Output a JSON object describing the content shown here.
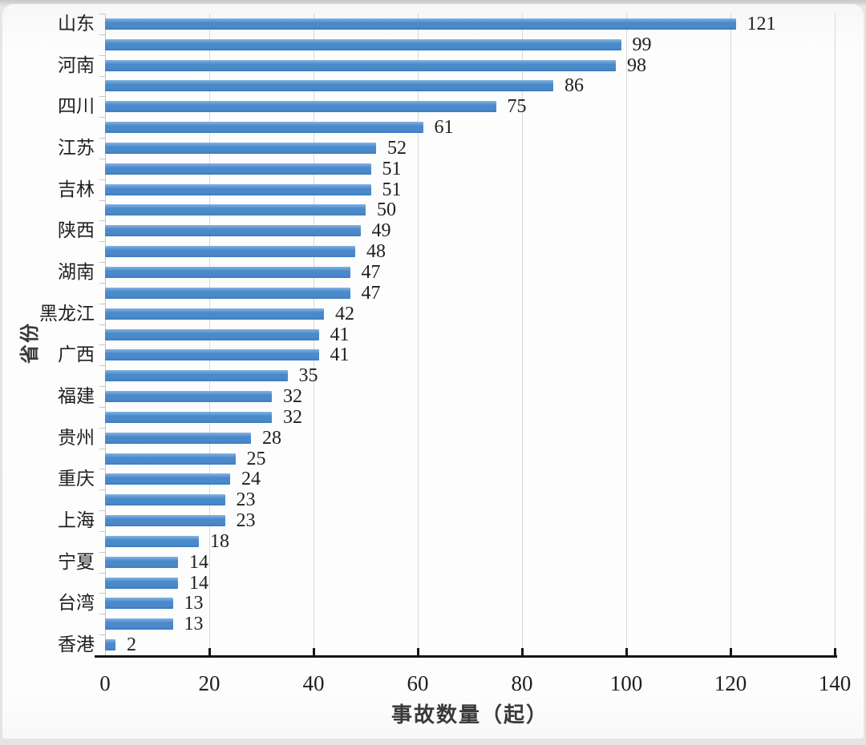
{
  "chart_data": {
    "type": "bar",
    "orientation": "horizontal",
    "title": "",
    "xlabel": "事故数量（起）",
    "ylabel": "省份",
    "xlim": [
      0,
      140
    ],
    "xticks": [
      0,
      20,
      40,
      60,
      80,
      100,
      120,
      140
    ],
    "grid": "vertical-major",
    "legend": "none",
    "value_labels": "end-of-bar",
    "categories": [
      "山东",
      "",
      "河南",
      "",
      "四川",
      "",
      "江苏",
      "",
      "吉林",
      "",
      "陕西",
      "",
      "湖南",
      "",
      "黑龙江",
      "",
      "广西",
      "",
      "福建",
      "",
      "贵州",
      "",
      "重庆",
      "",
      "上海",
      "",
      "宁夏",
      "",
      "台湾",
      "",
      "香港"
    ],
    "values": [
      121,
      99,
      98,
      86,
      75,
      61,
      52,
      51,
      51,
      50,
      49,
      48,
      47,
      47,
      42,
      41,
      41,
      35,
      32,
      32,
      28,
      25,
      24,
      23,
      23,
      18,
      14,
      14,
      13,
      13,
      2
    ]
  },
  "colors": {
    "bar_top": "#85b3e2",
    "bar_mid": "#4b8aca",
    "bar_bottom": "#3c7cbe",
    "gridline": "#d9d9d9",
    "minor_axis": "#c6c6c6",
    "axis_line": "#161616",
    "text": "#1f1f1f",
    "axis_title": "#3a3a3a"
  }
}
